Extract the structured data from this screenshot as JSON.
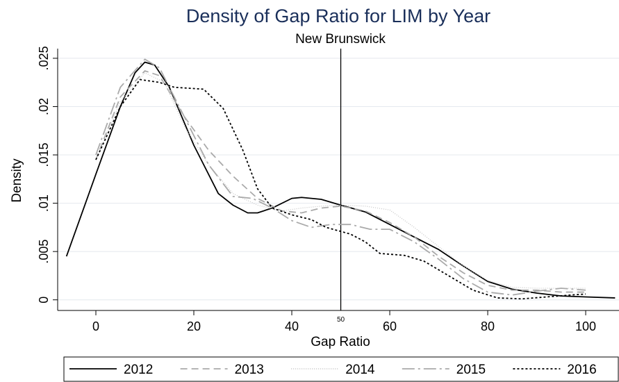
{
  "chart_data": {
    "type": "line",
    "title": "Density of Gap Ratio for LIM by Year",
    "subtitle": "New Brunswick",
    "x_label": "Gap Ratio",
    "y_label": "Density",
    "xlim": [
      -7.8,
      106.8
    ],
    "ylim": [
      -0.0011,
      0.026
    ],
    "xticks": [
      0,
      20,
      40,
      60,
      80,
      100
    ],
    "yticks": [
      0,
      {
        "value": 0.005,
        "label": ".005"
      },
      {
        "value": 0.01,
        "label": ".01"
      },
      {
        "value": 0.015,
        "label": ".015"
      },
      {
        "value": 0.02,
        "label": ".02"
      },
      {
        "value": 0.025,
        "label": ".025"
      }
    ],
    "grid": true,
    "legend": "bottom",
    "vline": {
      "value": 50,
      "label": "50"
    },
    "series": [
      {
        "name": "2012",
        "color": "#000000",
        "dash": "none",
        "x": [
          -6,
          0,
          5,
          8,
          10,
          12,
          15,
          20,
          25,
          28,
          31,
          33,
          36,
          40,
          42,
          46,
          50,
          55,
          60,
          65,
          70,
          75,
          80,
          85,
          90,
          95,
          100,
          106
        ],
        "values": [
          0.0045,
          0.013,
          0.02,
          0.0235,
          0.0246,
          0.0243,
          0.022,
          0.016,
          0.011,
          0.0098,
          0.009,
          0.009,
          0.0095,
          0.0105,
          0.0106,
          0.0104,
          0.0098,
          0.0091,
          0.0078,
          0.0065,
          0.0052,
          0.0035,
          0.0019,
          0.0011,
          0.0007,
          0.0004,
          0.0003,
          0.0002
        ]
      },
      {
        "name": "2013",
        "color": "#aaaaaa",
        "dash": "10 6",
        "x": [
          0,
          5,
          10,
          13,
          18,
          23,
          28,
          33,
          38,
          42,
          46,
          50,
          55,
          60,
          65,
          70,
          75,
          80,
          85,
          90,
          95,
          100
        ],
        "values": [
          0.0145,
          0.021,
          0.0237,
          0.0232,
          0.019,
          0.0155,
          0.0128,
          0.0105,
          0.0092,
          0.009,
          0.0095,
          0.0097,
          0.0092,
          0.008,
          0.0065,
          0.0045,
          0.0028,
          0.0015,
          0.001,
          0.001,
          0.0008,
          0.0008
        ]
      },
      {
        "name": "2014",
        "color": "#c8c8c8",
        "dash": "1 2",
        "x": [
          0,
          5,
          10,
          14,
          18,
          23,
          28,
          33,
          38,
          42,
          46,
          50,
          55,
          60,
          65,
          70,
          75,
          80,
          85,
          90,
          95,
          100
        ],
        "values": [
          0.0145,
          0.0205,
          0.0235,
          0.0225,
          0.018,
          0.014,
          0.011,
          0.0098,
          0.0092,
          0.0095,
          0.0097,
          0.0098,
          0.0097,
          0.0093,
          0.0075,
          0.0055,
          0.0035,
          0.002,
          0.0013,
          0.0012,
          0.0012,
          0.0012
        ]
      },
      {
        "name": "2015",
        "color": "#aaaaaa",
        "dash": "18 5 3 5",
        "x": [
          0,
          5,
          10,
          13,
          18,
          23,
          28,
          32,
          36,
          40,
          44,
          48,
          52,
          56,
          60,
          65,
          70,
          75,
          80,
          85,
          90,
          95,
          100
        ],
        "values": [
          0.015,
          0.022,
          0.0249,
          0.024,
          0.019,
          0.014,
          0.0107,
          0.0105,
          0.0095,
          0.0082,
          0.0075,
          0.0078,
          0.0078,
          0.0073,
          0.0073,
          0.006,
          0.0042,
          0.0022,
          0.0008,
          0.0005,
          0.0009,
          0.0012,
          0.001
        ]
      },
      {
        "name": "2016",
        "color": "#000000",
        "dash": "3 3",
        "x": [
          0,
          5,
          9,
          13,
          16,
          22,
          26,
          30,
          33,
          36,
          40,
          44,
          47,
          52,
          55,
          58,
          63,
          67,
          72,
          77,
          82,
          87,
          92,
          97,
          100
        ],
        "values": [
          0.0145,
          0.02,
          0.0228,
          0.0225,
          0.022,
          0.0218,
          0.0198,
          0.0155,
          0.0115,
          0.0095,
          0.0088,
          0.0083,
          0.0075,
          0.0068,
          0.006,
          0.0048,
          0.0046,
          0.004,
          0.0025,
          0.001,
          0.0002,
          0.0001,
          0.0003,
          0.0005,
          0.0006
        ]
      }
    ]
  }
}
